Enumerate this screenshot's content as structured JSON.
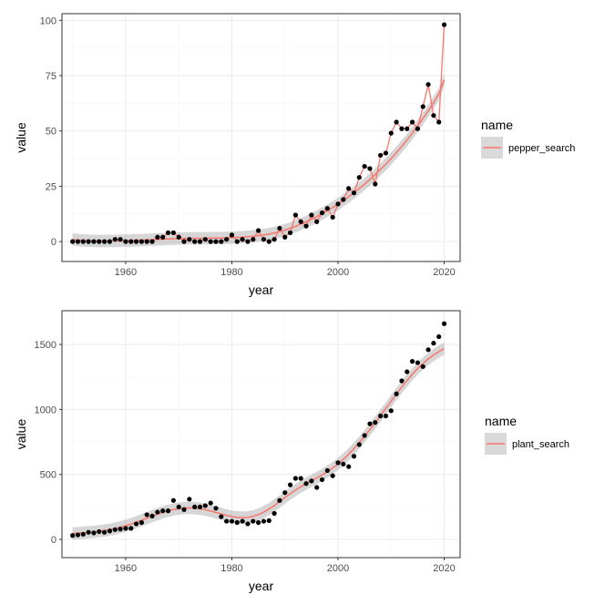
{
  "chart_data": [
    {
      "type": "scatter",
      "series_name": "pepper_search",
      "xlabel": "year",
      "ylabel": "value",
      "legend_title": "name",
      "legend_label": "pepper_search",
      "legend_position": "right",
      "grid": true,
      "smooth": true,
      "xlim": [
        1948,
        2023
      ],
      "ylim": [
        -9,
        103
      ],
      "xticks": [
        1960,
        1980,
        2000,
        2020
      ],
      "xtick_labels": [
        "1960",
        "1980",
        "2000",
        "2020"
      ],
      "yticks": [
        0,
        25,
        50,
        75,
        100
      ],
      "ytick_labels": [
        "0",
        "25",
        "50",
        "75",
        "100"
      ],
      "x": [
        1950,
        1951,
        1952,
        1953,
        1954,
        1955,
        1956,
        1957,
        1958,
        1959,
        1960,
        1961,
        1962,
        1963,
        1964,
        1965,
        1966,
        1967,
        1968,
        1969,
        1970,
        1971,
        1972,
        1973,
        1974,
        1975,
        1976,
        1977,
        1978,
        1979,
        1980,
        1981,
        1982,
        1983,
        1984,
        1985,
        1986,
        1987,
        1988,
        1989,
        1990,
        1991,
        1992,
        1993,
        1994,
        1995,
        1996,
        1997,
        1998,
        1999,
        2000,
        2001,
        2002,
        2003,
        2004,
        2005,
        2006,
        2007,
        2008,
        2009,
        2010,
        2011,
        2012,
        2013,
        2014,
        2015,
        2016,
        2017,
        2018,
        2019,
        2020
      ],
      "values": [
        0,
        0,
        0,
        0,
        0,
        0,
        0,
        0,
        1,
        1,
        0,
        0,
        0,
        0,
        0,
        0,
        2,
        2,
        4,
        4,
        2,
        0,
        1,
        0,
        0,
        1,
        0,
        0,
        0,
        1,
        3,
        0,
        1,
        0,
        1,
        5,
        1,
        0,
        1,
        6,
        2,
        4,
        12,
        9,
        7,
        12,
        9,
        13,
        15,
        11,
        17,
        19,
        24,
        22,
        29,
        34,
        33,
        26,
        39,
        40,
        49,
        54,
        51,
        51,
        54,
        51,
        61,
        71,
        57,
        54,
        98
      ],
      "smooth_values": [
        1,
        0.7,
        0.5,
        0.4,
        0.3,
        0.3,
        0.3,
        0.3,
        0.3,
        0.4,
        0.4,
        0.5,
        0.6,
        0.7,
        0.8,
        0.9,
        1,
        1.1,
        1.2,
        1.3,
        1.4,
        1.4,
        1.5,
        1.5,
        1.5,
        1.5,
        1.6,
        1.6,
        1.6,
        1.7,
        1.8,
        1.9,
        2,
        2.2,
        2.4,
        2.7,
        3,
        3.4,
        3.9,
        4.5,
        5.2,
        6,
        6.9,
        7.9,
        9,
        10.1,
        11.3,
        12.6,
        14,
        15.4,
        17,
        18.6,
        20.3,
        22.1,
        24,
        26,
        28.1,
        30.3,
        32.6,
        35,
        37.5,
        40.2,
        43,
        45.9,
        49,
        52.2,
        55.6,
        59.1,
        62.8,
        66.7,
        73
      ]
    },
    {
      "type": "scatter",
      "series_name": "plant_search",
      "xlabel": "year",
      "ylabel": "value",
      "legend_title": "name",
      "legend_label": "plant_search",
      "legend_position": "right",
      "grid": true,
      "smooth": true,
      "xlim": [
        1948,
        2023
      ],
      "ylim": [
        -140,
        1760
      ],
      "xticks": [
        1960,
        1980,
        2000,
        2020
      ],
      "xtick_labels": [
        "1960",
        "1980",
        "2000",
        "2020"
      ],
      "yticks": [
        0,
        500,
        1000,
        1500
      ],
      "ytick_labels": [
        "0",
        "500",
        "1000",
        "1500"
      ],
      "x": [
        1950,
        1951,
        1952,
        1953,
        1954,
        1955,
        1956,
        1957,
        1958,
        1959,
        1960,
        1961,
        1962,
        1963,
        1964,
        1965,
        1966,
        1967,
        1968,
        1969,
        1970,
        1971,
        1972,
        1973,
        1974,
        1975,
        1976,
        1977,
        1978,
        1979,
        1980,
        1981,
        1982,
        1983,
        1984,
        1985,
        1986,
        1987,
        1988,
        1989,
        1990,
        1991,
        1992,
        1993,
        1994,
        1995,
        1996,
        1997,
        1998,
        1999,
        2000,
        2001,
        2002,
        2003,
        2004,
        2005,
        2006,
        2007,
        2008,
        2009,
        2010,
        2011,
        2012,
        2013,
        2014,
        2015,
        2016,
        2017,
        2018,
        2019,
        2020
      ],
      "values": [
        30,
        35,
        40,
        55,
        50,
        60,
        55,
        65,
        75,
        80,
        85,
        85,
        120,
        130,
        190,
        180,
        210,
        220,
        220,
        300,
        250,
        230,
        310,
        250,
        250,
        260,
        280,
        240,
        175,
        140,
        140,
        130,
        140,
        120,
        140,
        130,
        140,
        145,
        200,
        300,
        360,
        420,
        470,
        470,
        430,
        450,
        400,
        460,
        530,
        490,
        590,
        580,
        560,
        640,
        730,
        800,
        890,
        900,
        950,
        950,
        990,
        1120,
        1220,
        1290,
        1370,
        1360,
        1330,
        1460,
        1510,
        1560,
        1660
      ]
    }
  ],
  "colors": {
    "smooth_line": "#F8766D",
    "ribbon": "#999999",
    "point": "#000000",
    "panel_border": "#333333",
    "grid_major": "#ebebeb",
    "grid_minor": "#f5f5f5",
    "tick_text": "#4d4d4d",
    "legend_key_bg": "#d9d9d9"
  }
}
